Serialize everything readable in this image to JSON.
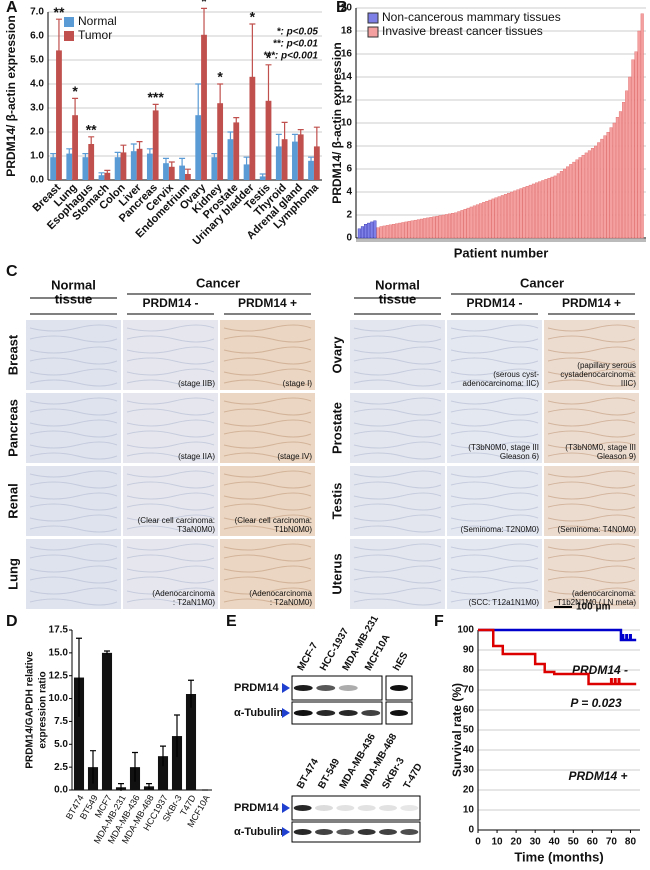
{
  "chart_data": [
    {
      "type": "bar",
      "panel": "A",
      "ylabel": "PRDM14/ β-actin expression",
      "categories": [
        "Breast",
        "Lung",
        "Esophagus",
        "Stomach",
        "Colon",
        "Liver",
        "Pancreas",
        "Cervix",
        "Endometrium",
        "Ovary",
        "Kidney",
        "Prostate",
        "Urinary bladder",
        "Testis",
        "Thyroid",
        "Adrenal gland",
        "Lymphoma"
      ],
      "series": [
        {
          "name": "Normal",
          "color": "#5b9bd5",
          "values": [
            0.95,
            1.1,
            0.95,
            0.2,
            0.95,
            1.2,
            1.1,
            0.7,
            0.6,
            2.7,
            0.95,
            1.7,
            0.65,
            0.15,
            1.4,
            1.6,
            0.8
          ],
          "errors": [
            0.15,
            0.2,
            0.15,
            0.1,
            0.2,
            0.3,
            0.2,
            0.2,
            0.3,
            1.3,
            0.15,
            0.3,
            0.3,
            0.1,
            0.5,
            0.3,
            0.15
          ]
        },
        {
          "name": "Tumor",
          "color": "#c0504d",
          "values": [
            5.4,
            2.7,
            1.5,
            0.3,
            1.15,
            1.3,
            2.9,
            0.55,
            0.25,
            6.05,
            3.2,
            2.4,
            4.3,
            3.3,
            1.7,
            1.9,
            1.4
          ],
          "errors": [
            1.3,
            0.7,
            0.3,
            0.1,
            0.3,
            0.3,
            0.25,
            0.2,
            0.2,
            1.1,
            0.8,
            0.2,
            2.2,
            1.5,
            0.7,
            0.2,
            0.8
          ]
        }
      ],
      "significance": [
        "**",
        "*",
        "**",
        null,
        null,
        null,
        "***",
        null,
        null,
        "*",
        "*",
        null,
        "*",
        "*",
        null,
        null,
        null
      ],
      "notes": [
        "*: p<0.05",
        "**: p<0.01",
        "***: p<0.001"
      ],
      "ylim": [
        0,
        7
      ],
      "yticks": [
        {
          "value": 0,
          "label": "0.0"
        },
        {
          "value": 1,
          "label": "1.0"
        },
        {
          "value": 2,
          "label": "2.0"
        },
        {
          "value": 3,
          "label": "3.0"
        },
        {
          "value": 4,
          "label": "4.0"
        },
        {
          "value": 5,
          "label": "5.0"
        },
        {
          "value": 6,
          "label": "6.0"
        },
        {
          "value": 7,
          "label": "7.0"
        }
      ],
      "grid": true,
      "legend": "upper left"
    },
    {
      "type": "bar",
      "panel": "B",
      "ylabel": "PRDM14/ β-actin expression",
      "xlabel": "Patient number",
      "series": [
        {
          "name": "Non-cancerous mammary tissues",
          "color": "#7f7fe8",
          "values": [
            0.8,
            1.0,
            1.2,
            1.3,
            1.4,
            1.5
          ]
        },
        {
          "name": "Invasive breast cancer tissues",
          "color": "#f4a0a0",
          "values": [
            0.9,
            1.0,
            1.05,
            1.1,
            1.15,
            1.2,
            1.25,
            1.3,
            1.35,
            1.4,
            1.45,
            1.5,
            1.55,
            1.6,
            1.65,
            1.7,
            1.75,
            1.8,
            1.85,
            1.9,
            1.95,
            2.0,
            2.05,
            2.1,
            2.15,
            2.2,
            2.3,
            2.4,
            2.5,
            2.6,
            2.7,
            2.8,
            2.9,
            3.0,
            3.1,
            3.2,
            3.3,
            3.4,
            3.5,
            3.6,
            3.7,
            3.8,
            3.9,
            4.0,
            4.1,
            4.2,
            4.3,
            4.4,
            4.5,
            4.6,
            4.7,
            4.8,
            4.9,
            5.0,
            5.1,
            5.2,
            5.3,
            5.4,
            5.6,
            5.8,
            6.0,
            6.2,
            6.4,
            6.6,
            6.8,
            7.0,
            7.2,
            7.4,
            7.6,
            7.8,
            8.0,
            8.3,
            8.6,
            8.9,
            9.2,
            9.6,
            10.0,
            10.5,
            11.0,
            11.8,
            12.8,
            14.0,
            15.5,
            16.2,
            18.0,
            19.5
          ]
        }
      ],
      "ylim": [
        0,
        20
      ],
      "yticks": [
        0,
        2,
        4,
        6,
        8,
        10,
        12,
        14,
        16,
        18,
        20
      ],
      "grid": true,
      "legend": "upper left"
    },
    {
      "type": "bar",
      "panel": "D",
      "ylabel": [
        "PRDM14/GAPDH relative",
        "expression ratio"
      ],
      "categories": [
        "BT474",
        "BT549",
        "MCF7",
        "MDA-MB-231",
        "MDA-MB-436",
        "MDA-MB-468",
        "HCC1937",
        "SKBr-3",
        "T47D",
        "MCF10A"
      ],
      "values": [
        12.3,
        2.5,
        15.0,
        0.3,
        2.5,
        0.4,
        3.7,
        5.9,
        10.5,
        0
      ],
      "errors": [
        4.3,
        1.8,
        0.2,
        0.4,
        1.6,
        0.3,
        1.1,
        2.3,
        1.5,
        0
      ],
      "color": "#111111",
      "ylim": [
        0,
        17.5
      ],
      "yticks": [
        {
          "value": 0,
          "label": "0.0"
        },
        {
          "value": 2.5,
          "label": "2.5"
        },
        {
          "value": 5,
          "label": "5.0"
        },
        {
          "value": 7.5,
          "label": "7.5"
        },
        {
          "value": 10,
          "label": "10.0"
        },
        {
          "value": 12.5,
          "label": "12.5"
        },
        {
          "value": 15,
          "label": "15.0"
        },
        {
          "value": 17.5,
          "label": "17.5"
        }
      ],
      "grid": false
    },
    {
      "type": "line",
      "panel": "F",
      "xlabel": "Time (months)",
      "ylabel": "Survival rate (%)",
      "annotation": "P = 0.023",
      "series": [
        {
          "name": "PRDM14 -",
          "color": "#0000cc",
          "x": [
            0,
            75,
            75,
            83
          ],
          "y": [
            100,
            100,
            95,
            95
          ],
          "censored": {
            "x": [
              76,
              78,
              80
            ],
            "y": [
              95,
              95,
              95
            ]
          }
        },
        {
          "name": "PRDM14 +",
          "color": "#dd0000",
          "x": [
            0,
            8,
            8,
            13,
            13,
            30,
            30,
            35,
            35,
            40,
            40,
            58,
            58,
            83
          ],
          "y": [
            100,
            100,
            92,
            92,
            88,
            88,
            83,
            83,
            79,
            79,
            78,
            78,
            73,
            73
          ],
          "censored": {
            "x": [
              70,
              72,
              74
            ],
            "y": [
              73,
              73,
              73
            ]
          }
        }
      ],
      "xlim": [
        0,
        85
      ],
      "xticks": [
        0,
        10,
        20,
        30,
        40,
        50,
        60,
        70,
        80
      ],
      "ylim": [
        0,
        100
      ],
      "yticks": [
        0,
        10,
        20,
        30,
        40,
        50,
        60,
        70,
        80,
        90,
        100
      ],
      "grid": true
    }
  ],
  "panel_c": {
    "letter": "C",
    "scale": "100 μm",
    "blocks": [
      {
        "normal": [
          "Normal",
          "tissue"
        ],
        "cancer": "Cancer",
        "neg": "PRDM14 -",
        "pos": "PRDM14 +",
        "rows": [
          {
            "tissue": "Breast",
            "neg_caption": [
              "(stage IIB)"
            ],
            "pos_caption": [
              "(stage I)"
            ]
          },
          {
            "tissue": "Pancreas",
            "neg_caption": [
              "(stage IIA)"
            ],
            "pos_caption": [
              "(stage IV)"
            ]
          },
          {
            "tissue": "Renal",
            "neg_caption": [
              "(Clear cell carcinoma:",
              "T3aN0M0)"
            ],
            "pos_caption": [
              "(Clear cell carcinoma:",
              "T1bN0M0)"
            ]
          },
          {
            "tissue": "Lung",
            "neg_caption": [
              "(Adenocarcinoma",
              ": T2aN1M0)"
            ],
            "pos_caption": [
              "(Adenocarcinoma",
              ": T2aN0M0)"
            ]
          }
        ]
      },
      {
        "normal": [
          "Normal",
          "tissue"
        ],
        "cancer": "Cancer",
        "neg": "PRDM14 -",
        "pos": "PRDM14 +",
        "rows": [
          {
            "tissue": "Ovary",
            "neg_caption": [
              "(serous cyst-",
              "adenocarcinoma: IIC)"
            ],
            "pos_caption": [
              "(papillary serous",
              "cystadenocarcinoma:",
              "IIIC)"
            ]
          },
          {
            "tissue": "Prostate",
            "neg_caption": [
              "(T3bN0M0, stage III",
              "Gleason 6)"
            ],
            "pos_caption": [
              "(T3bN0M0, stage III",
              "Gleason 9)"
            ]
          },
          {
            "tissue": "Testis",
            "neg_caption": [
              "(Seminoma: T2N0M0)"
            ],
            "pos_caption": [
              "(Seminoma: T4N0M0)"
            ]
          },
          {
            "tissue": "Uterus",
            "neg_caption": [
              "(SCC: T12a1N1M0)"
            ],
            "pos_caption": [
              "(adenocarcinoma:",
              "T1b2N1M0 / LN meta)"
            ]
          }
        ]
      }
    ]
  },
  "panel_e": {
    "letter": "E",
    "blots": [
      {
        "lanes": [
          "MCF-7",
          "HCC-1937",
          "MDA-MB-231",
          "MCF10A"
        ],
        "extra_lanes": [
          "hES"
        ],
        "rows": [
          "PRDM14",
          "α-Tubulin"
        ]
      },
      {
        "lanes": [
          "BT-474",
          "BT-549",
          "MDA-MB-436",
          "MDA-MB-468",
          "SKBr-3",
          "T-47D"
        ],
        "rows": [
          "PRDM14",
          "α-Tubulin"
        ]
      }
    ]
  }
}
